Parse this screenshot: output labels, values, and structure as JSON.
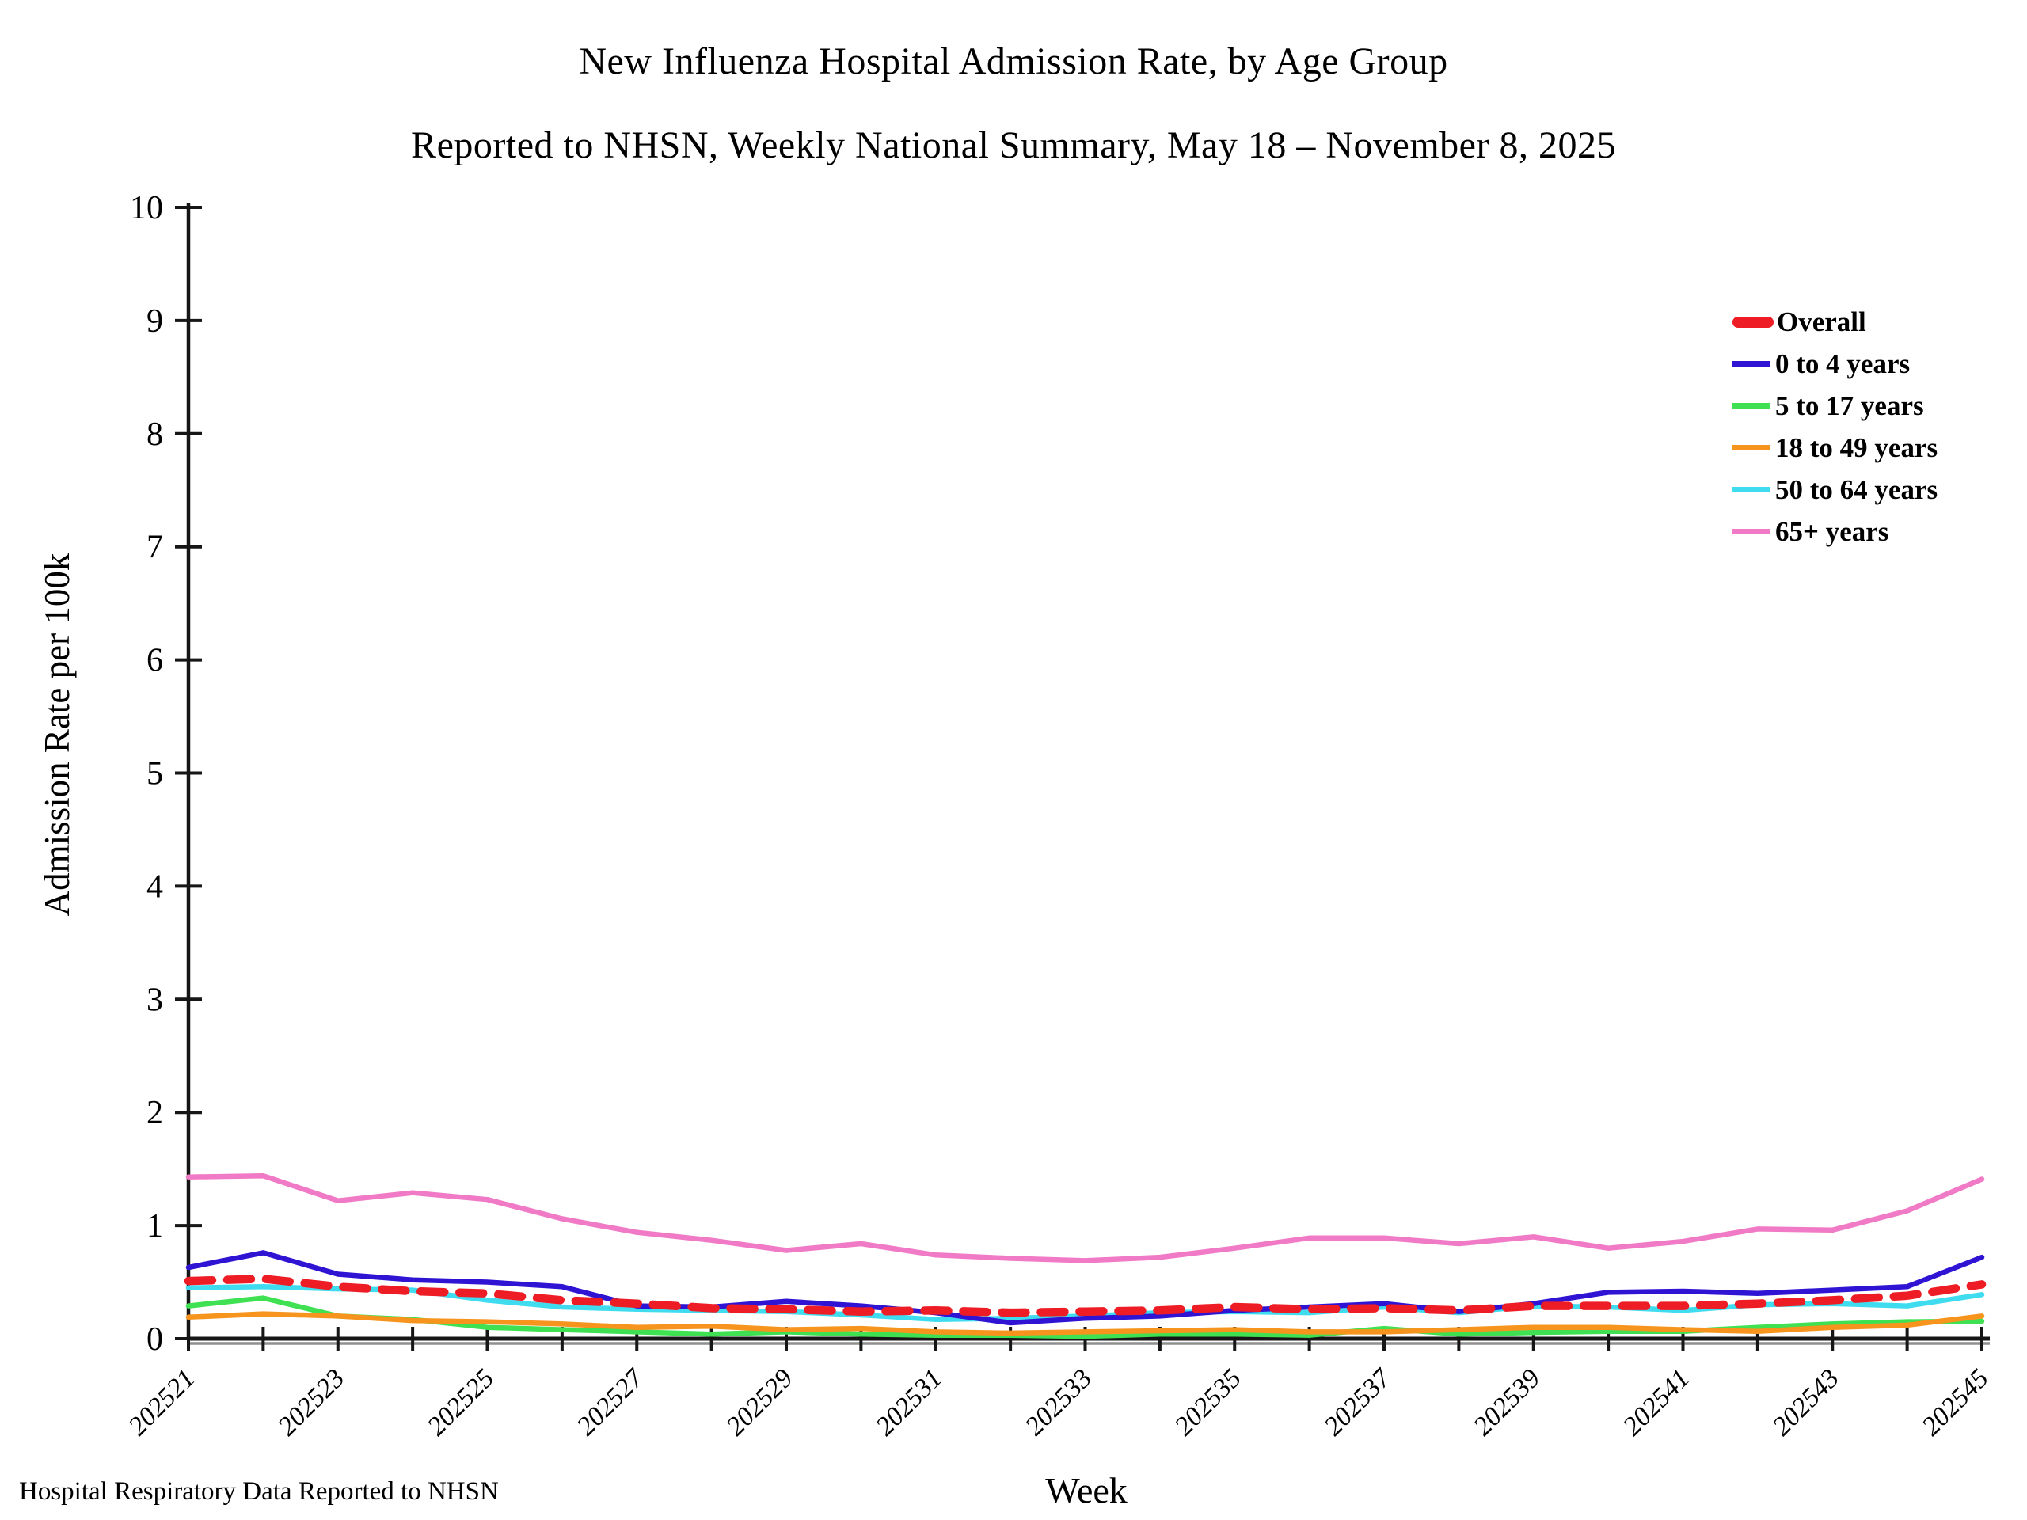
{
  "titles": {
    "line1": "New Influenza Hospital Admission Rate, by Age Group",
    "line2": "Reported to NHSN, Weekly National Summary, May 18 – November 8, 2025"
  },
  "footer": "Hospital Respiratory Data Reported to NHSN",
  "chart_data": {
    "type": "line",
    "title": "New Influenza Hospital Admission Rate, by Age Group",
    "subtitle": "Reported to NHSN, Weekly National Summary, May 18 – November 8, 2025",
    "xlabel": "Week",
    "ylabel": "Admission Rate per 100k",
    "ylim": [
      0,
      10
    ],
    "yticks": [
      0,
      1,
      2,
      3,
      4,
      5,
      6,
      7,
      8,
      9,
      10
    ],
    "grid": false,
    "legend_position": "upper right inside",
    "x": [
      "202521",
      "202522",
      "202523",
      "202524",
      "202525",
      "202526",
      "202527",
      "202528",
      "202529",
      "202530",
      "202531",
      "202532",
      "202533",
      "202534",
      "202535",
      "202536",
      "202537",
      "202538",
      "202539",
      "202540",
      "202541",
      "202542",
      "202543",
      "202544",
      "202545"
    ],
    "xtick_label_every": 2,
    "series": [
      {
        "name": "Overall",
        "color": "#ee1c25",
        "style": "dashed",
        "width": 10.5,
        "values": [
          0.51,
          0.53,
          0.46,
          0.42,
          0.4,
          0.34,
          0.31,
          0.27,
          0.26,
          0.24,
          0.25,
          0.23,
          0.24,
          0.25,
          0.28,
          0.26,
          0.27,
          0.25,
          0.29,
          0.29,
          0.29,
          0.31,
          0.34,
          0.38,
          0.48
        ]
      },
      {
        "name": "0 to 4 years",
        "color": "#2f14d4",
        "style": "solid",
        "width": 6.5,
        "values": [
          0.63,
          0.76,
          0.57,
          0.52,
          0.5,
          0.46,
          0.29,
          0.28,
          0.33,
          0.29,
          0.23,
          0.14,
          0.18,
          0.2,
          0.25,
          0.28,
          0.31,
          0.24,
          0.31,
          0.41,
          0.42,
          0.4,
          0.43,
          0.46,
          0.72
        ]
      },
      {
        "name": "5 to 17 years",
        "color": "#3fe153",
        "style": "solid",
        "width": 6.5,
        "values": [
          0.29,
          0.36,
          0.2,
          0.17,
          0.1,
          0.08,
          0.06,
          0.04,
          0.06,
          0.04,
          0.03,
          0.03,
          0.02,
          0.04,
          0.04,
          0.03,
          0.09,
          0.04,
          0.055,
          0.065,
          0.065,
          0.1,
          0.13,
          0.15,
          0.155
        ]
      },
      {
        "name": "18 to 49 years",
        "color": "#f7941d",
        "style": "solid",
        "width": 6.5,
        "values": [
          0.19,
          0.22,
          0.2,
          0.16,
          0.15,
          0.13,
          0.1,
          0.11,
          0.08,
          0.09,
          0.06,
          0.05,
          0.06,
          0.07,
          0.08,
          0.06,
          0.06,
          0.08,
          0.1,
          0.1,
          0.08,
          0.065,
          0.1,
          0.12,
          0.2
        ]
      },
      {
        "name": "50 to 64 years",
        "color": "#3fdcf0",
        "style": "solid",
        "width": 6.5,
        "values": [
          0.45,
          0.46,
          0.44,
          0.43,
          0.34,
          0.28,
          0.26,
          0.25,
          0.24,
          0.21,
          0.17,
          0.18,
          0.2,
          0.23,
          0.24,
          0.23,
          0.28,
          0.23,
          0.29,
          0.28,
          0.25,
          0.3,
          0.31,
          0.29,
          0.39
        ]
      },
      {
        "name": "65+ years",
        "color": "#f07ac5",
        "style": "solid",
        "width": 6.5,
        "values": [
          1.43,
          1.44,
          1.22,
          1.29,
          1.23,
          1.06,
          0.94,
          0.87,
          0.78,
          0.84,
          0.74,
          0.71,
          0.69,
          0.72,
          0.8,
          0.89,
          0.89,
          0.84,
          0.9,
          0.8,
          0.86,
          0.97,
          0.96,
          1.13,
          1.41
        ]
      }
    ],
    "draw_order": [
      "5 to 17 years",
      "18 to 49 years",
      "50 to 64 years",
      "0 to 4 years",
      "65+ years",
      "Overall"
    ],
    "axis_color": "#161616",
    "axis_shadow_color": "#8f8f8f"
  }
}
